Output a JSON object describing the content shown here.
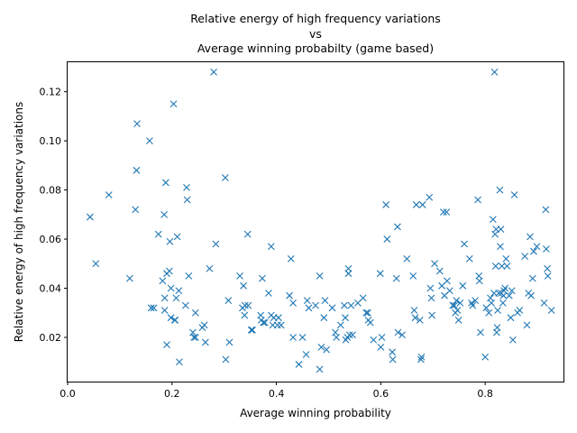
{
  "chart_data": {
    "type": "scatter",
    "title_lines": [
      "Relative energy of high frequency variations",
      "vs",
      "Average winning probabilty (game based)"
    ],
    "xlabel": "Average winning probability",
    "ylabel": "Relative energy of high frequency variations",
    "xlim": [
      0.0,
      0.95
    ],
    "ylim": [
      0.002,
      0.132
    ],
    "xticks": [
      "0.0",
      "0.2",
      "0.4",
      "0.6",
      "0.8"
    ],
    "xtick_values": [
      0.0,
      0.2,
      0.4,
      0.6,
      0.8
    ],
    "yticks": [
      "0.02",
      "0.04",
      "0.06",
      "0.08",
      "0.10",
      "0.12"
    ],
    "ytick_values": [
      0.02,
      0.04,
      0.06,
      0.08,
      0.1,
      0.12
    ],
    "grid": false,
    "legend": "none",
    "marker": "x",
    "color": "#1f77b4",
    "points": [
      [
        0.043,
        0.069
      ],
      [
        0.054,
        0.05
      ],
      [
        0.079,
        0.078
      ],
      [
        0.119,
        0.044
      ],
      [
        0.13,
        0.072
      ],
      [
        0.132,
        0.088
      ],
      [
        0.133,
        0.107
      ],
      [
        0.157,
        0.1
      ],
      [
        0.16,
        0.032
      ],
      [
        0.165,
        0.032
      ],
      [
        0.174,
        0.062
      ],
      [
        0.182,
        0.043
      ],
      [
        0.185,
        0.07
      ],
      [
        0.186,
        0.031
      ],
      [
        0.186,
        0.036
      ],
      [
        0.188,
        0.083
      ],
      [
        0.19,
        0.017
      ],
      [
        0.19,
        0.046
      ],
      [
        0.195,
        0.047
      ],
      [
        0.196,
        0.059
      ],
      [
        0.198,
        0.04
      ],
      [
        0.198,
        0.028
      ],
      [
        0.203,
        0.115
      ],
      [
        0.205,
        0.027
      ],
      [
        0.206,
        0.027
      ],
      [
        0.208,
        0.036
      ],
      [
        0.21,
        0.061
      ],
      [
        0.213,
        0.039
      ],
      [
        0.214,
        0.01
      ],
      [
        0.226,
        0.033
      ],
      [
        0.228,
        0.081
      ],
      [
        0.229,
        0.076
      ],
      [
        0.232,
        0.045
      ],
      [
        0.24,
        0.022
      ],
      [
        0.242,
        0.02
      ],
      [
        0.245,
        0.02
      ],
      [
        0.245,
        0.03
      ],
      [
        0.258,
        0.024
      ],
      [
        0.262,
        0.025
      ],
      [
        0.264,
        0.018
      ],
      [
        0.272,
        0.048
      ],
      [
        0.28,
        0.128
      ],
      [
        0.284,
        0.058
      ],
      [
        0.302,
        0.085
      ],
      [
        0.303,
        0.011
      ],
      [
        0.308,
        0.035
      ],
      [
        0.31,
        0.018
      ],
      [
        0.33,
        0.045
      ],
      [
        0.335,
        0.032
      ],
      [
        0.337,
        0.041
      ],
      [
        0.339,
        0.029
      ],
      [
        0.34,
        0.033
      ],
      [
        0.345,
        0.062
      ],
      [
        0.346,
        0.033
      ],
      [
        0.352,
        0.023
      ],
      [
        0.354,
        0.023
      ],
      [
        0.37,
        0.029
      ],
      [
        0.371,
        0.027
      ],
      [
        0.373,
        0.044
      ],
      [
        0.375,
        0.026
      ],
      [
        0.378,
        0.026
      ],
      [
        0.385,
        0.038
      ],
      [
        0.39,
        0.029
      ],
      [
        0.39,
        0.057
      ],
      [
        0.393,
        0.025
      ],
      [
        0.395,
        0.028
      ],
      [
        0.402,
        0.025
      ],
      [
        0.404,
        0.028
      ],
      [
        0.409,
        0.025
      ],
      [
        0.425,
        0.037
      ],
      [
        0.428,
        0.052
      ],
      [
        0.432,
        0.02
      ],
      [
        0.432,
        0.034
      ],
      [
        0.443,
        0.009
      ],
      [
        0.45,
        0.02
      ],
      [
        0.457,
        0.013
      ],
      [
        0.459,
        0.035
      ],
      [
        0.462,
        0.032
      ],
      [
        0.475,
        0.033
      ],
      [
        0.483,
        0.007
      ],
      [
        0.483,
        0.045
      ],
      [
        0.486,
        0.016
      ],
      [
        0.491,
        0.028
      ],
      [
        0.493,
        0.035
      ],
      [
        0.496,
        0.015
      ],
      [
        0.507,
        0.032
      ],
      [
        0.513,
        0.022
      ],
      [
        0.515,
        0.02
      ],
      [
        0.523,
        0.025
      ],
      [
        0.53,
        0.033
      ],
      [
        0.532,
        0.028
      ],
      [
        0.533,
        0.019
      ],
      [
        0.536,
        0.02
      ],
      [
        0.538,
        0.046
      ],
      [
        0.538,
        0.048
      ],
      [
        0.54,
        0.021
      ],
      [
        0.543,
        0.033
      ],
      [
        0.546,
        0.021
      ],
      [
        0.556,
        0.034
      ],
      [
        0.566,
        0.036
      ],
      [
        0.572,
        0.03
      ],
      [
        0.575,
        0.03
      ],
      [
        0.576,
        0.027
      ],
      [
        0.58,
        0.026
      ],
      [
        0.586,
        0.019
      ],
      [
        0.599,
        0.046
      ],
      [
        0.6,
        0.016
      ],
      [
        0.602,
        0.02
      ],
      [
        0.61,
        0.074
      ],
      [
        0.612,
        0.06
      ],
      [
        0.622,
        0.014
      ],
      [
        0.623,
        0.011
      ],
      [
        0.63,
        0.044
      ],
      [
        0.632,
        0.065
      ],
      [
        0.633,
        0.022
      ],
      [
        0.641,
        0.021
      ],
      [
        0.65,
        0.052
      ],
      [
        0.662,
        0.045
      ],
      [
        0.664,
        0.031
      ],
      [
        0.666,
        0.028
      ],
      [
        0.668,
        0.074
      ],
      [
        0.675,
        0.027
      ],
      [
        0.677,
        0.011
      ],
      [
        0.678,
        0.012
      ],
      [
        0.68,
        0.074
      ],
      [
        0.693,
        0.077
      ],
      [
        0.695,
        0.04
      ],
      [
        0.697,
        0.036
      ],
      [
        0.698,
        0.029
      ],
      [
        0.703,
        0.05
      ],
      [
        0.713,
        0.047
      ],
      [
        0.717,
        0.041
      ],
      [
        0.72,
        0.071
      ],
      [
        0.722,
        0.037
      ],
      [
        0.726,
        0.071
      ],
      [
        0.727,
        0.043
      ],
      [
        0.732,
        0.039
      ],
      [
        0.738,
        0.033
      ],
      [
        0.741,
        0.033
      ],
      [
        0.743,
        0.03
      ],
      [
        0.745,
        0.035
      ],
      [
        0.747,
        0.031
      ],
      [
        0.749,
        0.027
      ],
      [
        0.752,
        0.034
      ],
      [
        0.757,
        0.041
      ],
      [
        0.76,
        0.058
      ],
      [
        0.77,
        0.052
      ],
      [
        0.774,
        0.034
      ],
      [
        0.776,
        0.033
      ],
      [
        0.781,
        0.035
      ],
      [
        0.786,
        0.076
      ],
      [
        0.788,
        0.045
      ],
      [
        0.789,
        0.043
      ],
      [
        0.791,
        0.022
      ],
      [
        0.8,
        0.012
      ],
      [
        0.802,
        0.032
      ],
      [
        0.807,
        0.03
      ],
      [
        0.81,
        0.036
      ],
      [
        0.812,
        0.034
      ],
      [
        0.815,
        0.068
      ],
      [
        0.817,
        0.038
      ],
      [
        0.818,
        0.128
      ],
      [
        0.819,
        0.062
      ],
      [
        0.82,
        0.049
      ],
      [
        0.821,
        0.064
      ],
      [
        0.822,
        0.022
      ],
      [
        0.823,
        0.024
      ],
      [
        0.824,
        0.031
      ],
      [
        0.826,
        0.038
      ],
      [
        0.828,
        0.08
      ],
      [
        0.829,
        0.057
      ],
      [
        0.83,
        0.064
      ],
      [
        0.831,
        0.038
      ],
      [
        0.832,
        0.049
      ],
      [
        0.834,
        0.034
      ],
      [
        0.835,
        0.037
      ],
      [
        0.836,
        0.039
      ],
      [
        0.838,
        0.04
      ],
      [
        0.84,
        0.052
      ],
      [
        0.842,
        0.049
      ],
      [
        0.846,
        0.037
      ],
      [
        0.849,
        0.028
      ],
      [
        0.851,
        0.039
      ],
      [
        0.853,
        0.019
      ],
      [
        0.856,
        0.078
      ],
      [
        0.862,
        0.03
      ],
      [
        0.866,
        0.031
      ],
      [
        0.876,
        0.053
      ],
      [
        0.88,
        0.025
      ],
      [
        0.883,
        0.038
      ],
      [
        0.886,
        0.061
      ],
      [
        0.888,
        0.037
      ],
      [
        0.891,
        0.044
      ],
      [
        0.893,
        0.055
      ],
      [
        0.899,
        0.057
      ],
      [
        0.913,
        0.034
      ],
      [
        0.916,
        0.072
      ],
      [
        0.917,
        0.056
      ],
      [
        0.919,
        0.048
      ],
      [
        0.92,
        0.045
      ],
      [
        0.927,
        0.031
      ]
    ]
  }
}
